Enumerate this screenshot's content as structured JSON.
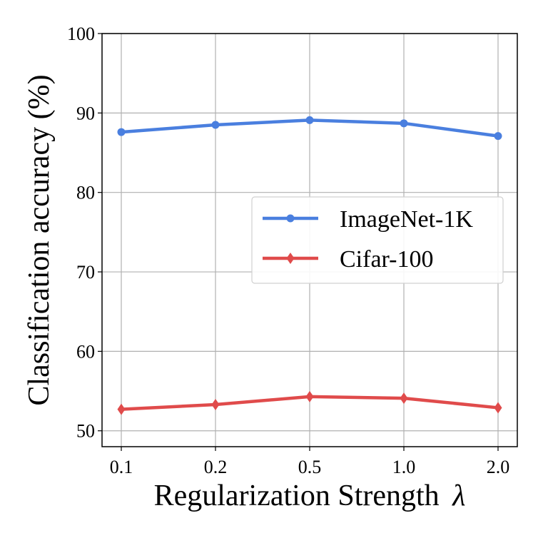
{
  "chart_data": {
    "type": "line",
    "title": "",
    "xlabel": "Regularization Strength",
    "xlabel_symbol": "λ",
    "ylabel": "Classification accuracy (%)",
    "categories": [
      "0.1",
      "0.2",
      "0.5",
      "1.0",
      "2.0"
    ],
    "ylim": [
      48,
      100
    ],
    "yticks": [
      50,
      60,
      70,
      80,
      90,
      100
    ],
    "grid": true,
    "legend_position": "center-right",
    "series": [
      {
        "name": "ImageNet-1K",
        "values": [
          87.6,
          88.5,
          89.1,
          88.7,
          87.1
        ],
        "color": "#4a7fdf",
        "marker": "circle"
      },
      {
        "name": "Cifar-100",
        "values": [
          52.7,
          53.3,
          54.3,
          54.1,
          52.9
        ],
        "color": "#e04b4b",
        "marker": "diamond"
      }
    ]
  }
}
